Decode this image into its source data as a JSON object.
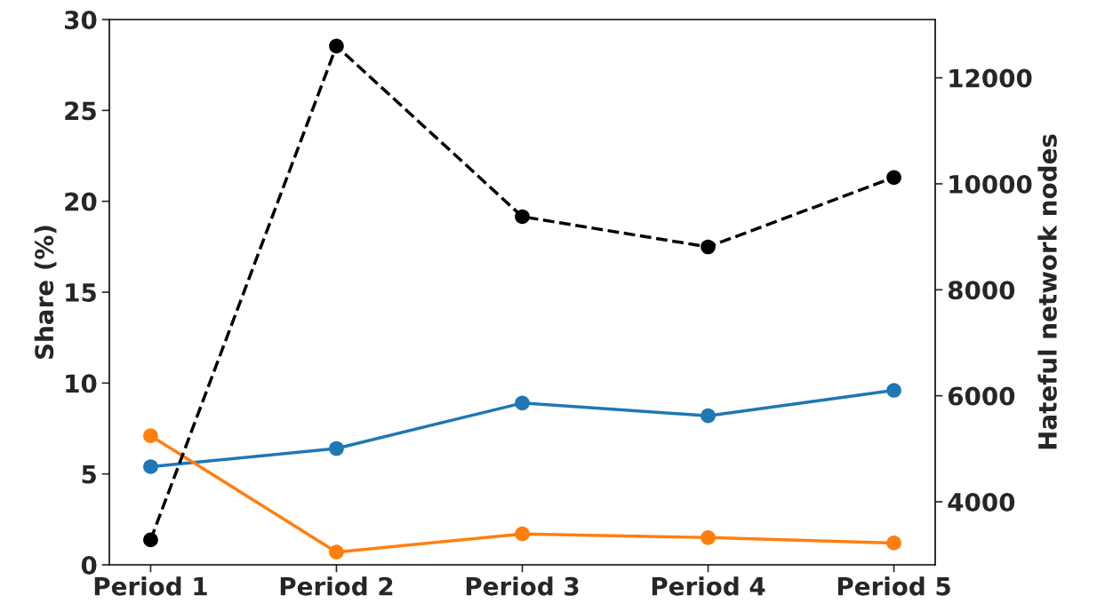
{
  "chart_data": {
    "type": "line",
    "ylabel": "Share (%)",
    "y2label": "Hateful network nodes",
    "categories": [
      "Period 1",
      "Period 2",
      "Period 3",
      "Period 4",
      "Period 5"
    ],
    "series": [
      {
        "color": "#1f77b4",
        "values": [
          5.4,
          6.4,
          8.9,
          8.2,
          9.6
        ],
        "marker": "circle",
        "line_style": "solid"
      },
      {
        "color": "#ff7f0e",
        "values": [
          7.1,
          0.7,
          1.7,
          1.5,
          1.2
        ],
        "marker": "circle",
        "line_style": "solid"
      },
      {
        "color": "#000000",
        "values": [
          3280,
          12600,
          9380,
          8810,
          10120
        ],
        "axis": "y2",
        "marker": "circle",
        "line_style": "dashed"
      }
    ],
    "ylim": [
      0,
      30
    ],
    "yticks": [
      0,
      5,
      10,
      15,
      20,
      25,
      30
    ],
    "y2lim": [
      2810,
      13100
    ],
    "y2ticks": [
      4000,
      6000,
      8000,
      10000,
      12000
    ],
    "grid": false,
    "legend": false
  }
}
